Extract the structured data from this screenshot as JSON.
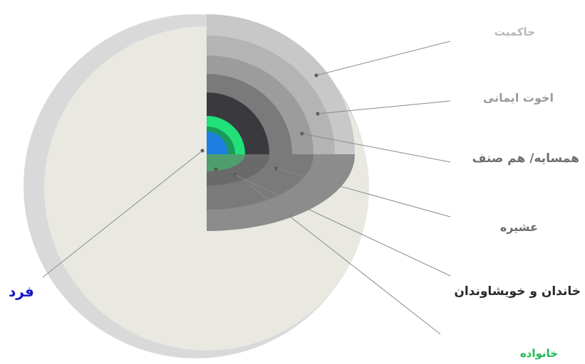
{
  "labels": {
    "governance": "حاکمیت",
    "faith_brotherhood": "اخوت ایمانی",
    "neighbor_peer": "همسایه/ هم صنف",
    "tribe": "عشیره",
    "clan_relatives": "خاندان و خویشاوندان",
    "family": "خانواده",
    "individual": "فرد"
  },
  "colors": {
    "governance": "#b8b8b8",
    "faith_brotherhood": "#9a9a9a",
    "neighbor_peer": "#6e6e6e",
    "tribe": "#6a6a6a",
    "clan_relatives": "#2a2a2a",
    "family": "#1db954",
    "individual": "#1515c8"
  }
}
